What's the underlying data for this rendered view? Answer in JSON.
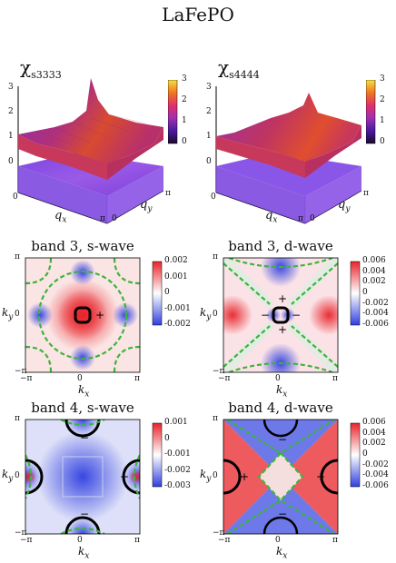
{
  "figure_title": "LaFePO",
  "top_panels": [
    {
      "label_main": "χ",
      "label_sub": "s3333",
      "z_ticks": [
        "3",
        "2",
        "1",
        "0"
      ],
      "colorbar_ticks": [
        "3",
        "2",
        "1",
        "0"
      ],
      "x_ticks": [
        "0",
        "π"
      ],
      "y_ticks": [
        "0",
        "π"
      ],
      "xlabel": "q",
      "xlabel_sub": "x",
      "ylabel": "q",
      "ylabel_sub": "y"
    },
    {
      "label_main": "χ",
      "label_sub": "s4444",
      "z_ticks": [
        "3",
        "2",
        "1",
        "0"
      ],
      "colorbar_ticks": [
        "3",
        "2",
        "1",
        "0"
      ],
      "x_ticks": [
        "0",
        "π"
      ],
      "y_ticks": [
        "0",
        "π"
      ],
      "xlabel": "q",
      "xlabel_sub": "x",
      "ylabel": "q",
      "ylabel_sub": "y"
    }
  ],
  "gap_panels": [
    {
      "title": "band 3, s-wave",
      "colorbar_ticks": [
        "0.002",
        "0.001",
        "0",
        "-0.001",
        "-0.002"
      ],
      "signs": [
        "+"
      ]
    },
    {
      "title": "band 3, d-wave",
      "colorbar_ticks": [
        "0.006",
        "0.004",
        "0.002",
        "0",
        "-0.002",
        "-0.004",
        "-0.006"
      ],
      "signs": [
        "+",
        "+",
        "−",
        "−"
      ]
    },
    {
      "title": "band 4, s-wave",
      "colorbar_ticks": [
        "0.001",
        "0",
        "-0.001",
        "-0.002",
        "-0.003"
      ],
      "signs": [
        "−",
        "+",
        "−"
      ]
    },
    {
      "title": "band 4, d-wave",
      "colorbar_ticks": [
        "0.006",
        "0.004",
        "0.002",
        "0",
        "-0.002",
        "-0.004",
        "-0.006"
      ],
      "signs": [
        "−",
        "+",
        "+",
        "−"
      ]
    }
  ],
  "k_axes": {
    "x_ticks": [
      "−π",
      "0",
      "π"
    ],
    "y_ticks": [
      "π",
      "0",
      "−π"
    ],
    "xlabel": "k",
    "xlabel_sub": "x",
    "ylabel": "k",
    "ylabel_sub": "y"
  },
  "colors": {
    "fermi_surface": "#000000",
    "node_line": "#3cb43c",
    "positive": "#e8242a",
    "negative": "#2f3fe0",
    "surface_main": "#b8306a",
    "floor": "#8a50e8"
  }
}
